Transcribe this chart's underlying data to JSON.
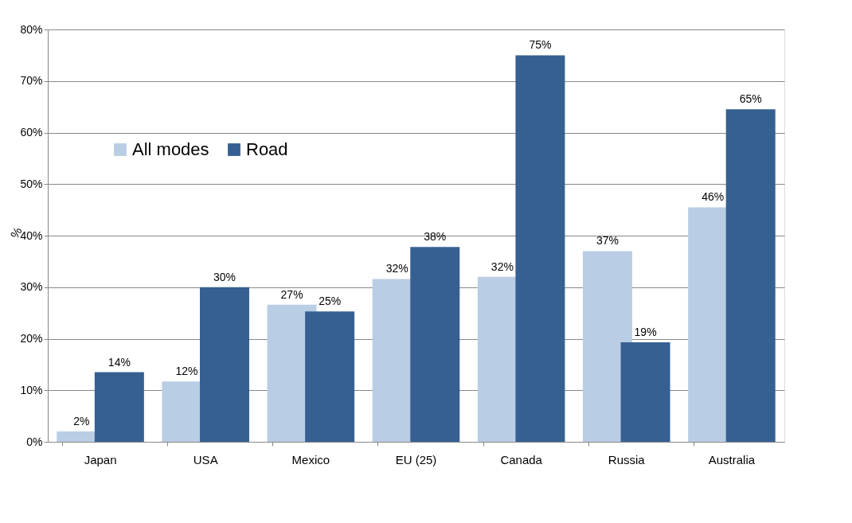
{
  "chart_data": {
    "type": "bar",
    "ylabel": "%",
    "categories": [
      "Japan",
      "USA",
      "Mexico",
      "EU (25)",
      "Canada",
      "Russia",
      "Australia"
    ],
    "series": [
      {
        "name": "All modes",
        "color": "#b9cde5",
        "values": [
          2,
          11.7,
          26.6,
          31.6,
          32,
          37,
          45.5
        ],
        "value_labels": [
          "2%",
          "12%",
          "27%",
          "32%",
          "32%",
          "37%",
          "46%"
        ]
      },
      {
        "name": "Road",
        "color": "#376092",
        "values": [
          13.5,
          30,
          25.3,
          37.8,
          75,
          19.3,
          64.5
        ],
        "value_labels": [
          "14%",
          "30%",
          "25%",
          "38%",
          "75%",
          "19%",
          "65%"
        ]
      }
    ],
    "ylim": [
      0,
      80
    ],
    "yticks": [
      {
        "value": 0,
        "label": "0%"
      },
      {
        "value": 10,
        "label": "10%"
      },
      {
        "value": 20,
        "label": "20%"
      },
      {
        "value": 30,
        "label": "30%"
      },
      {
        "value": 40,
        "label": "40%"
      },
      {
        "value": 50,
        "label": "50%"
      },
      {
        "value": 60,
        "label": "60%"
      },
      {
        "value": 70,
        "label": "70%"
      },
      {
        "value": 80,
        "label": "80%"
      }
    ],
    "grid": "y",
    "legend": "top left"
  }
}
